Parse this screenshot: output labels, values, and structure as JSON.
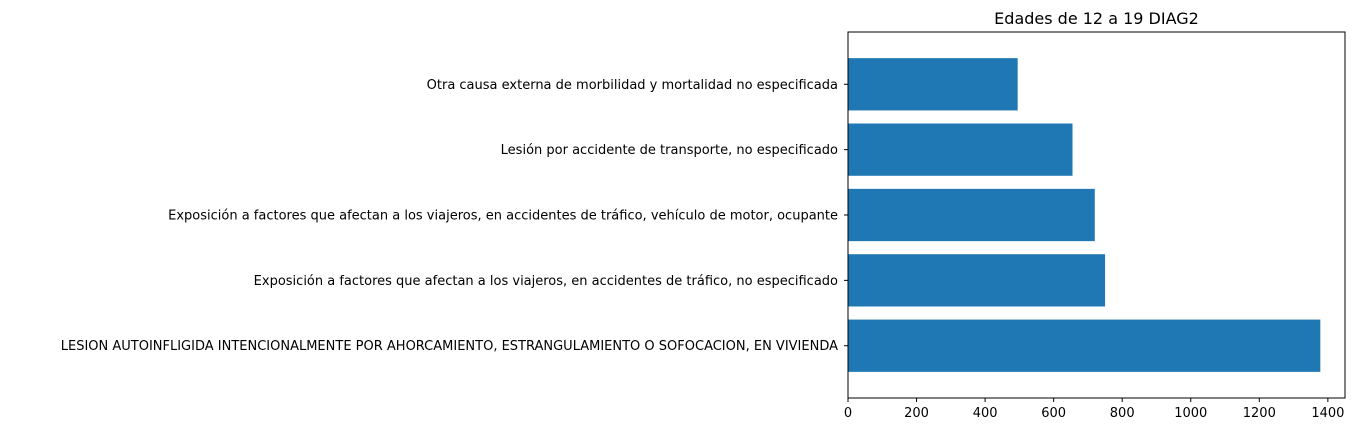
{
  "chart_data": {
    "type": "bar",
    "orientation": "horizontal",
    "title": "Edades de 12 a 19 DIAG2",
    "xlabel": "",
    "ylabel": "",
    "xlim": [
      0,
      1450
    ],
    "x_ticks": [
      0,
      200,
      400,
      600,
      800,
      1000,
      1200,
      1400
    ],
    "grid": false,
    "legend": "none",
    "bar_color": "#1f77b4",
    "categories": [
      "LESION AUTOINFLIGIDA INTENCIONALMENTE POR AHORCAMIENTO, ESTRANGULAMIENTO O SOFOCACION, EN VIVIENDA",
      "Exposición a factores que afectan a los viajeros, en accidentes de tráfico, no especificado",
      "Exposición a factores que afectan a los viajeros, en accidentes de tráfico, vehículo de motor, ocupante",
      "Lesión por accidente de transporte, no especificado",
      "Otra causa externa de morbilidad y mortalidad no especificada"
    ],
    "values": [
      1378,
      750,
      720,
      655,
      495
    ]
  }
}
